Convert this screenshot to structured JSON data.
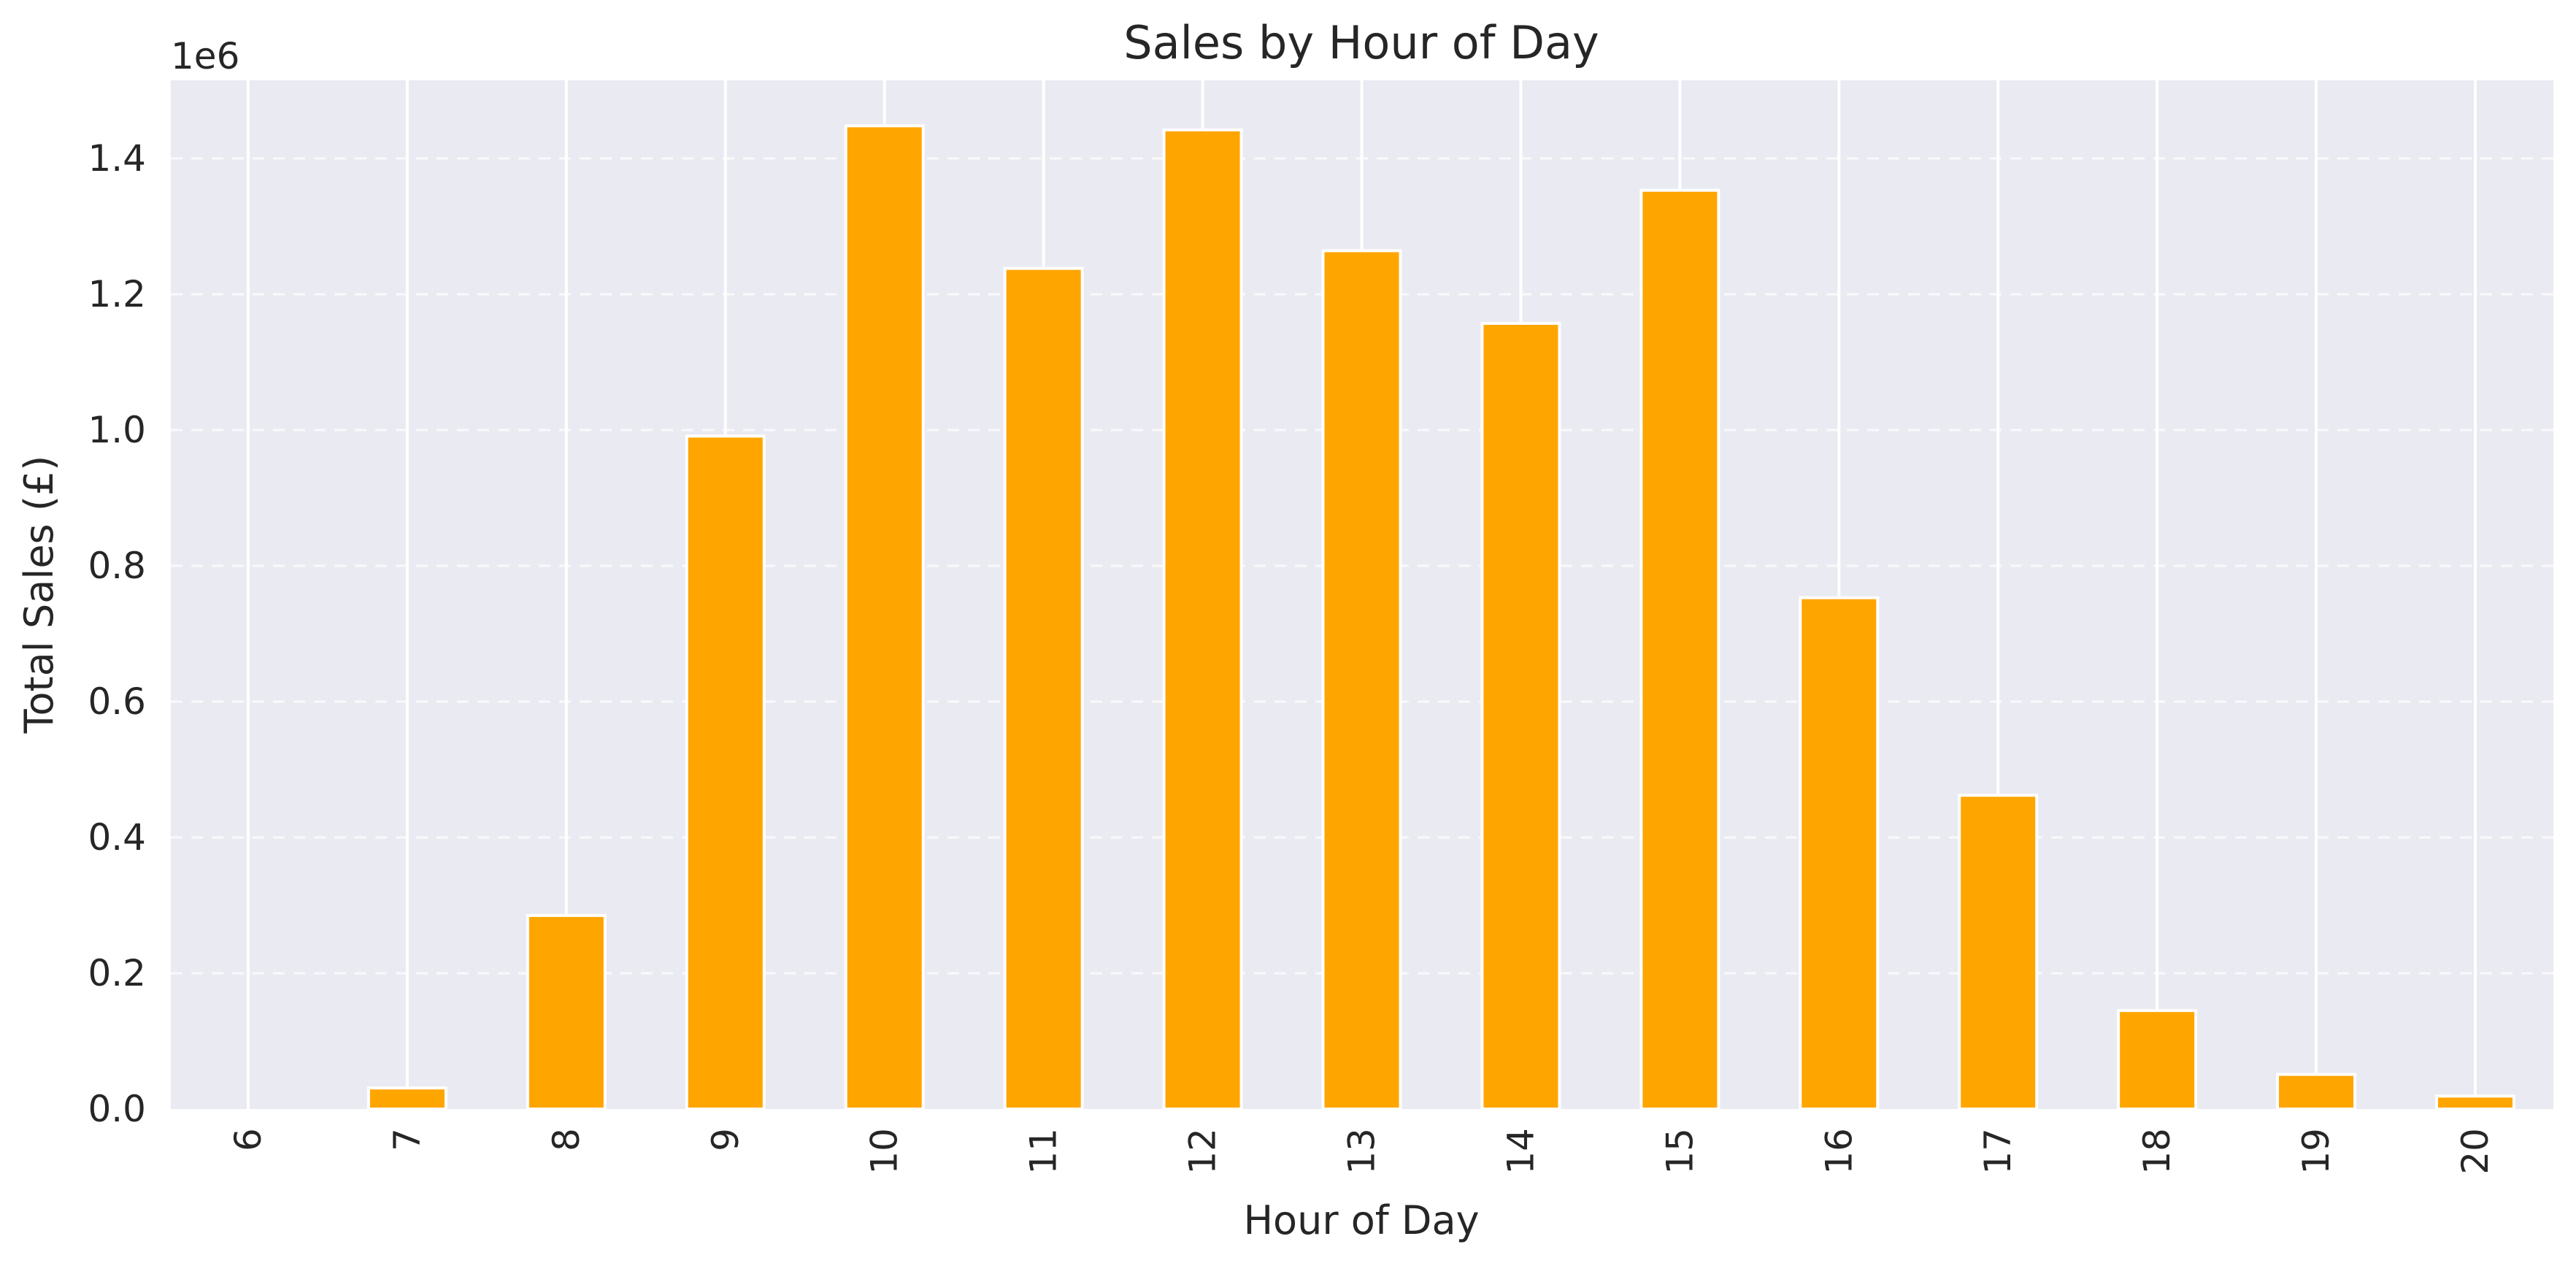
{
  "chart_data": {
    "type": "bar",
    "title": "Sales by Hour of Day",
    "xlabel": "Hour of Day",
    "ylabel": "Total Sales (£)",
    "y_offset_label": "1e6",
    "categories": [
      "6",
      "7",
      "8",
      "9",
      "10",
      "11",
      "12",
      "13",
      "14",
      "15",
      "16",
      "17",
      "18",
      "19",
      "20"
    ],
    "values": [
      0,
      31000,
      285000,
      991000,
      1448000,
      1238000,
      1442000,
      1264000,
      1157000,
      1353000,
      753000,
      462000,
      145000,
      51000,
      19000
    ],
    "ylim": [
      0,
      1515000
    ],
    "yticks": [
      0,
      0.2,
      0.4,
      0.6,
      0.8,
      1.0,
      1.2,
      1.4
    ],
    "ytick_labels": [
      "0.0",
      "0.2",
      "0.4",
      "0.6",
      "0.8",
      "1.0",
      "1.2",
      "1.4"
    ],
    "grid": {
      "x": "solid white",
      "y": "dashed white"
    },
    "legend": null,
    "xtick_rotation": 90
  },
  "colors": {
    "bar": "#ffa500",
    "bar_edge": "#ffffff",
    "plot_background": "#eaeaf2",
    "text": "#262626",
    "grid": "#ffffff"
  }
}
